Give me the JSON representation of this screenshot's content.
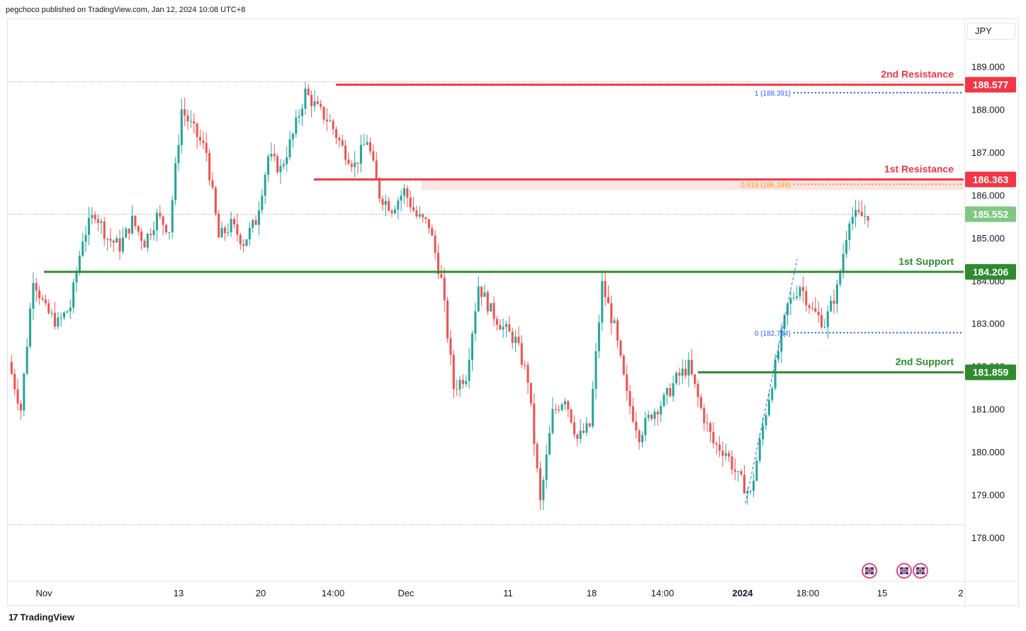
{
  "header": {
    "published": "pegchoco published on TradingView.com, Jan 12, 2024 10:08 UTC+8"
  },
  "footer": {
    "logo_mark": "17",
    "logo_text": "TradingView"
  },
  "currency": "JPY",
  "colors": {
    "bull": "#26a69a",
    "bear": "#ef5350",
    "resistance": "#f23645",
    "support": "#2e8b2e",
    "fib_top": "#2962ff",
    "fib_mid": "#ff9800",
    "zone": "#fce4e4",
    "current": "#81c784"
  },
  "chart_data": {
    "type": "candlestick",
    "ylim": [
      177,
      190
    ],
    "y_ticks": [
      "189.000",
      "188.000",
      "187.000",
      "186.000",
      "185.000",
      "184.000",
      "183.000",
      "182.000",
      "181.000",
      "180.000",
      "179.000",
      "178.000"
    ],
    "x_ticks": [
      {
        "label": "Nov",
        "bold": false
      },
      {
        "label": "13",
        "bold": false
      },
      {
        "label": "20",
        "bold": false
      },
      {
        "label": "14:00",
        "bold": false
      },
      {
        "label": "Dec",
        "bold": false
      },
      {
        "label": "11",
        "bold": false
      },
      {
        "label": "18",
        "bold": false
      },
      {
        "label": "14:00",
        "bold": false
      },
      {
        "label": "2024",
        "bold": true
      },
      {
        "label": "18:00",
        "bold": false
      },
      {
        "label": "15",
        "bold": false
      },
      {
        "label": "2",
        "bold": false
      }
    ],
    "levels": [
      {
        "name": "2nd Resistance",
        "value": 188.577,
        "badge": "188.577",
        "kind": "resistance"
      },
      {
        "name": "1st Resistance",
        "value": 186.363,
        "badge": "186.363",
        "kind": "resistance"
      },
      {
        "name": "1st Support",
        "value": 184.206,
        "badge": "184.206",
        "kind": "support"
      },
      {
        "name": "2nd Support",
        "value": 181.859,
        "badge": "181.859",
        "kind": "support"
      }
    ],
    "fibonacci": [
      {
        "label": "1 (188.391)",
        "value": 188.391
      },
      {
        "label": "0.618 (186.249)",
        "value": 186.249
      },
      {
        "label": "0 (182.784)",
        "value": 182.784
      }
    ],
    "current_price": {
      "value": 185.552,
      "label": "185.552"
    },
    "period_high": 188.577,
    "period_low": 178.3,
    "path": [
      [
        0,
        182.1
      ],
      [
        4,
        181.0
      ],
      [
        8,
        184.1
      ],
      [
        12,
        183.3
      ],
      [
        16,
        183.0
      ],
      [
        20,
        183.4
      ],
      [
        24,
        185.0
      ],
      [
        28,
        185.6
      ],
      [
        32,
        185.0
      ],
      [
        36,
        184.8
      ],
      [
        40,
        185.4
      ],
      [
        44,
        184.9
      ],
      [
        48,
        185.5
      ],
      [
        52,
        185.2
      ],
      [
        56,
        188.0
      ],
      [
        60,
        187.5
      ],
      [
        64,
        187.0
      ],
      [
        68,
        185.0
      ],
      [
        72,
        185.3
      ],
      [
        76,
        184.9
      ],
      [
        80,
        185.4
      ],
      [
        84,
        186.9
      ],
      [
        88,
        186.6
      ],
      [
        92,
        187.4
      ],
      [
        96,
        188.4
      ],
      [
        100,
        188.0
      ],
      [
        104,
        187.7
      ],
      [
        108,
        187.1
      ],
      [
        112,
        186.7
      ],
      [
        116,
        187.3
      ],
      [
        120,
        186.0
      ],
      [
        124,
        185.7
      ],
      [
        128,
        186.1
      ],
      [
        132,
        185.5
      ],
      [
        136,
        185.3
      ],
      [
        140,
        184.0
      ],
      [
        144,
        181.5
      ],
      [
        148,
        181.8
      ],
      [
        152,
        183.9
      ],
      [
        156,
        183.3
      ],
      [
        160,
        182.9
      ],
      [
        164,
        182.6
      ],
      [
        168,
        181.7
      ],
      [
        172,
        178.8
      ],
      [
        176,
        180.9
      ],
      [
        180,
        181.3
      ],
      [
        184,
        180.3
      ],
      [
        188,
        180.6
      ],
      [
        192,
        183.9
      ],
      [
        196,
        182.9
      ],
      [
        200,
        181.3
      ],
      [
        204,
        180.4
      ],
      [
        208,
        180.9
      ],
      [
        212,
        181.2
      ],
      [
        216,
        181.7
      ],
      [
        220,
        182.0
      ],
      [
        224,
        181.0
      ],
      [
        228,
        180.2
      ],
      [
        232,
        180.0
      ],
      [
        236,
        179.4
      ],
      [
        240,
        179.0
      ],
      [
        244,
        180.6
      ],
      [
        248,
        182.0
      ],
      [
        252,
        183.4
      ],
      [
        256,
        183.9
      ],
      [
        260,
        183.3
      ],
      [
        264,
        183.0
      ],
      [
        268,
        183.8
      ],
      [
        272,
        185.5
      ],
      [
        276,
        185.5
      ],
      [
        278,
        185.55
      ]
    ]
  },
  "flags": [
    {
      "name": "uk-flag-1"
    },
    {
      "name": "uk-flag-2"
    },
    {
      "name": "uk-flag-3"
    }
  ]
}
